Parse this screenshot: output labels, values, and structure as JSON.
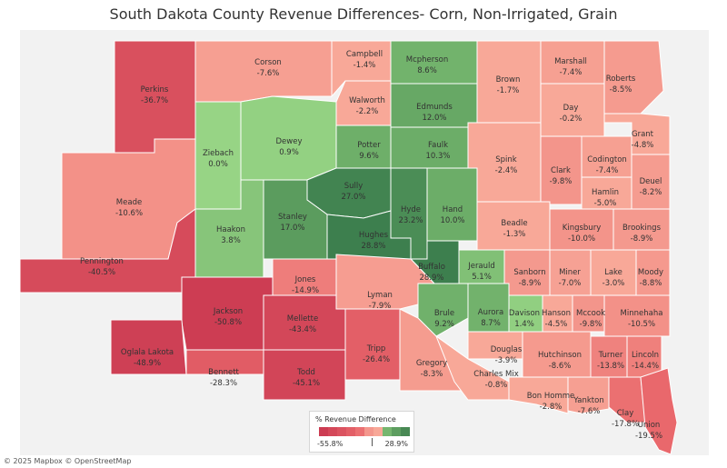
{
  "title": "South Dakota County Revenue Differences- Corn, Non-Irrigated, Grain",
  "legend": {
    "title": "% Revenue Difference",
    "min_label": "-55.8%",
    "max_label": "28.9%",
    "min": -55.8,
    "max": 28.9
  },
  "attribution": "© 2025 Mapbox  © OpenStreetMap",
  "colors": {
    "strong_negative": "#c8364f",
    "mid_negative": "#e9686c",
    "light_negative": "#f8a898",
    "neutral": "#dcdcdc",
    "light_positive": "#97d485",
    "mid_positive": "#6cad68",
    "strong_positive": "#3d7f4e",
    "outside_state": "#f2f2f2"
  },
  "counties": [
    {
      "name": "Perkins",
      "value_label": "-36.7%",
      "value": -36.7
    },
    {
      "name": "Corson",
      "value_label": "-7.6%",
      "value": -7.6
    },
    {
      "name": "Campbell",
      "value_label": "-1.4%",
      "value": -1.4
    },
    {
      "name": "Mcpherson",
      "value_label": "8.6%",
      "value": 8.6
    },
    {
      "name": "Brown",
      "value_label": "-1.7%",
      "value": -1.7
    },
    {
      "name": "Marshall",
      "value_label": "-7.4%",
      "value": -7.4
    },
    {
      "name": "Roberts",
      "value_label": "-8.5%",
      "value": -8.5
    },
    {
      "name": "Walworth",
      "value_label": "-2.2%",
      "value": -2.2
    },
    {
      "name": "Edmunds",
      "value_label": "12.0%",
      "value": 12.0
    },
    {
      "name": "Day",
      "value_label": "-0.2%",
      "value": -0.2
    },
    {
      "name": "Grant",
      "value_label": "-4.8%",
      "value": -4.8
    },
    {
      "name": "Ziebach",
      "value_label": "0.0%",
      "value": 0.0
    },
    {
      "name": "Dewey",
      "value_label": "0.9%",
      "value": 0.9
    },
    {
      "name": "Potter",
      "value_label": "9.6%",
      "value": 9.6
    },
    {
      "name": "Faulk",
      "value_label": "10.3%",
      "value": 10.3
    },
    {
      "name": "Spink",
      "value_label": "-2.4%",
      "value": -2.4
    },
    {
      "name": "Clark",
      "value_label": "-9.8%",
      "value": -9.8
    },
    {
      "name": "Codington",
      "value_label": "-7.4%",
      "value": -7.4
    },
    {
      "name": "Deuel",
      "value_label": "-8.2%",
      "value": -8.2
    },
    {
      "name": "Hamlin",
      "value_label": "-5.0%",
      "value": -5.0
    },
    {
      "name": "Meade",
      "value_label": "-10.6%",
      "value": -10.6
    },
    {
      "name": "Sully",
      "value_label": "27.0%",
      "value": 27.0
    },
    {
      "name": "Hyde",
      "value_label": "23.2%",
      "value": 23.2
    },
    {
      "name": "Hand",
      "value_label": "10.0%",
      "value": 10.0
    },
    {
      "name": "Stanley",
      "value_label": "17.0%",
      "value": 17.0
    },
    {
      "name": "Haakon",
      "value_label": "3.8%",
      "value": 3.8
    },
    {
      "name": "Hughes",
      "value_label": "28.8%",
      "value": 28.8
    },
    {
      "name": "Beadle",
      "value_label": "-1.3%",
      "value": -1.3
    },
    {
      "name": "Kingsbury",
      "value_label": "-10.0%",
      "value": -10.0
    },
    {
      "name": "Brookings",
      "value_label": "-8.9%",
      "value": -8.9
    },
    {
      "name": "Pennington",
      "value_label": "-40.5%",
      "value": -40.5
    },
    {
      "name": "Buffalo",
      "value_label": "28.9%",
      "value": 28.9
    },
    {
      "name": "Jerauld",
      "value_label": "5.1%",
      "value": 5.1
    },
    {
      "name": "Sanborn",
      "value_label": "-8.9%",
      "value": -8.9
    },
    {
      "name": "Miner",
      "value_label": "-7.0%",
      "value": -7.0
    },
    {
      "name": "Lake",
      "value_label": "-3.0%",
      "value": -3.0
    },
    {
      "name": "Moody",
      "value_label": "-8.8%",
      "value": -8.8
    },
    {
      "name": "Jones",
      "value_label": "-14.9%",
      "value": -14.9
    },
    {
      "name": "Lyman",
      "value_label": "-7.9%",
      "value": -7.9
    },
    {
      "name": "Jackson",
      "value_label": "-50.8%",
      "value": -50.8
    },
    {
      "name": "Mellette",
      "value_label": "-43.4%",
      "value": -43.4
    },
    {
      "name": "Brule",
      "value_label": "9.2%",
      "value": 9.2
    },
    {
      "name": "Aurora",
      "value_label": "8.7%",
      "value": 8.7
    },
    {
      "name": "Davison",
      "value_label": "1.4%",
      "value": 1.4
    },
    {
      "name": "Hanson",
      "value_label": "-4.5%",
      "value": -4.5
    },
    {
      "name": "Mccook",
      "value_label": "-9.8%",
      "value": -9.8
    },
    {
      "name": "Minnehaha",
      "value_label": "-10.5%",
      "value": -10.5
    },
    {
      "name": "Oglala Lakota",
      "value_label": "-48.9%",
      "value": -48.9
    },
    {
      "name": "Bennett",
      "value_label": "-28.3%",
      "value": -28.3
    },
    {
      "name": "Todd",
      "value_label": "-45.1%",
      "value": -45.1
    },
    {
      "name": "Tripp",
      "value_label": "-26.4%",
      "value": -26.4
    },
    {
      "name": "Gregory",
      "value_label": "-8.3%",
      "value": -8.3
    },
    {
      "name": "Douglas",
      "value_label": "-3.9%",
      "value": -3.9
    },
    {
      "name": "Charles Mix",
      "value_label": "-0.8%",
      "value": -0.8
    },
    {
      "name": "Hutchinson",
      "value_label": "-8.6%",
      "value": -8.6
    },
    {
      "name": "Turner",
      "value_label": "-13.8%",
      "value": -13.8
    },
    {
      "name": "Lincoln",
      "value_label": "-14.4%",
      "value": -14.4
    },
    {
      "name": "Bon Homme",
      "value_label": "-2.8%",
      "value": -2.8
    },
    {
      "name": "Yankton",
      "value_label": "-7.6%",
      "value": -7.6
    },
    {
      "name": "Clay",
      "value_label": "-17.8%",
      "value": -17.8
    },
    {
      "name": "Union",
      "value_label": "-19.5%",
      "value": -19.5
    }
  ]
}
